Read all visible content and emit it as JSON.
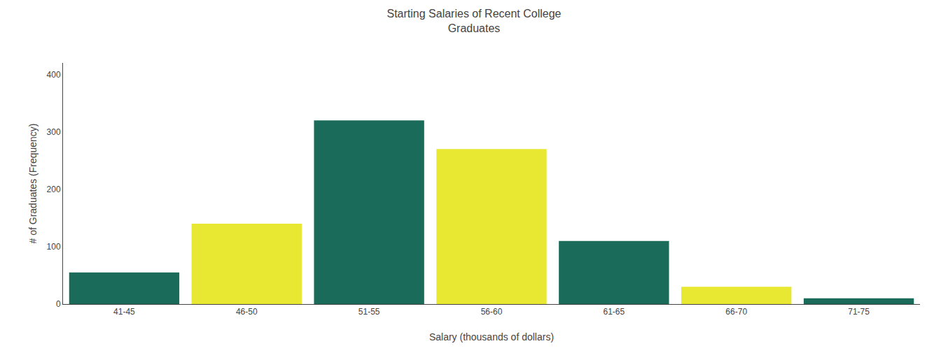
{
  "chart_data": {
    "type": "bar",
    "title": "Starting Salaries of Recent College\nGraduates",
    "xlabel": "Salary (thousands of dollars)",
    "ylabel": "# of Graduates (Frequency)",
    "categories": [
      "41-45",
      "46-50",
      "51-55",
      "56-60",
      "61-65",
      "66-70",
      "71-75"
    ],
    "values": [
      55,
      140,
      320,
      270,
      110,
      30,
      10
    ],
    "colors": [
      "#1a6b5a",
      "#e8e832",
      "#1a6b5a",
      "#e8e832",
      "#1a6b5a",
      "#e8e832",
      "#1a6b5a"
    ],
    "ylim": [
      0,
      420
    ],
    "yticks": [
      0,
      100,
      200,
      300,
      400
    ],
    "grid": false
  }
}
